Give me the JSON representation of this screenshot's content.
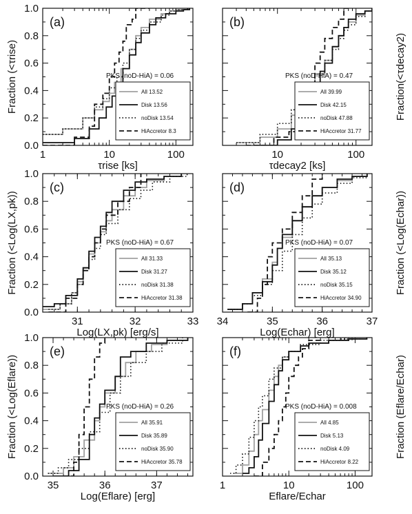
{
  "chart_data": [
    {
      "type": "line",
      "panel": "(a)",
      "xscale": "log",
      "xlim": [
        1,
        180
      ],
      "ylim": [
        0,
        1
      ],
      "xticks": [
        "1",
        "10",
        "100"
      ],
      "xtick_values": [
        1,
        10,
        100
      ],
      "yticks": [
        "0.0",
        "0.2",
        "0.4",
        "0.6",
        "0.8",
        "1.0"
      ],
      "xlabel": "τrise [ks]",
      "ylabel": "Fraction (<τrise)",
      "pks": "PKS (noD-HiA) = 0.06",
      "legend_position": "lower-right",
      "series": [
        {
          "name": "All 13.52",
          "color": "#a0a0a0",
          "dash": "solid",
          "x": [
            1,
            2,
            4,
            6,
            8,
            10,
            12,
            15,
            20,
            25,
            30,
            40,
            60,
            80,
            100,
            150
          ],
          "y": [
            0.08,
            0.12,
            0.2,
            0.26,
            0.32,
            0.38,
            0.46,
            0.56,
            0.7,
            0.8,
            0.86,
            0.92,
            0.96,
            0.98,
            0.99,
            1.0
          ]
        },
        {
          "name": "Disk 13.56",
          "color": "#111111",
          "dash": "solid",
          "x": [
            1,
            3,
            5,
            7,
            9,
            11,
            13,
            16,
            20,
            25,
            30,
            40,
            50,
            70,
            100,
            130,
            160
          ],
          "y": [
            0.02,
            0.05,
            0.12,
            0.2,
            0.28,
            0.36,
            0.45,
            0.56,
            0.66,
            0.75,
            0.82,
            0.88,
            0.93,
            0.96,
            0.98,
            0.99,
            1.0
          ]
        },
        {
          "name": "noDisk 13.54",
          "color": "#111111",
          "dash": "dot",
          "x": [
            1,
            2,
            4,
            6,
            8,
            10,
            13,
            16,
            20,
            25,
            30,
            40,
            60,
            80,
            100,
            150
          ],
          "y": [
            0.08,
            0.12,
            0.2,
            0.28,
            0.34,
            0.42,
            0.5,
            0.6,
            0.7,
            0.78,
            0.84,
            0.9,
            0.95,
            0.98,
            0.99,
            1.0
          ]
        },
        {
          "name": "HiAccretor 8.3",
          "color": "#111111",
          "dash": "dash",
          "x": [
            1,
            3,
            5,
            6,
            8,
            10,
            12,
            14,
            16,
            18,
            22,
            25,
            30,
            40
          ],
          "y": [
            0.0,
            0.06,
            0.14,
            0.3,
            0.38,
            0.5,
            0.6,
            0.68,
            0.76,
            0.88,
            0.92,
            1.0,
            1.0,
            1.0
          ]
        }
      ]
    },
    {
      "type": "line",
      "panel": "(b)",
      "xscale": "log",
      "xlim": [
        2,
        160
      ],
      "ylim": [
        0,
        1
      ],
      "xticks": [
        "10",
        "100"
      ],
      "xtick_values": [
        10,
        100
      ],
      "yticks": [],
      "xlabel": "τdecay2 [ks]",
      "ylabel": "Fraction(<τdecay2)",
      "pks": "PKS (noD-HiA) = 0.47",
      "legend_position": "lower-right",
      "series": [
        {
          "name": "All 39.99",
          "color": "#a0a0a0",
          "dash": "solid",
          "x": [
            3,
            6,
            10,
            15,
            20,
            25,
            30,
            40,
            50,
            60,
            70,
            80,
            100,
            130,
            160
          ],
          "y": [
            0.02,
            0.06,
            0.12,
            0.22,
            0.34,
            0.44,
            0.52,
            0.62,
            0.72,
            0.8,
            0.86,
            0.9,
            0.95,
            0.98,
            1.0
          ]
        },
        {
          "name": "Disk 42.15",
          "color": "#111111",
          "dash": "solid",
          "x": [
            5,
            10,
            15,
            20,
            25,
            30,
            35,
            40,
            50,
            60,
            70,
            80,
            100,
            130,
            160
          ],
          "y": [
            0.0,
            0.04,
            0.12,
            0.26,
            0.36,
            0.44,
            0.54,
            0.6,
            0.72,
            0.8,
            0.86,
            0.92,
            0.96,
            0.98,
            1.0
          ]
        },
        {
          "name": "noDisk 47.88",
          "color": "#111111",
          "dash": "dot",
          "x": [
            3,
            6,
            10,
            15,
            20,
            25,
            30,
            40,
            50,
            60,
            70,
            80,
            100,
            130,
            160
          ],
          "y": [
            0.02,
            0.08,
            0.16,
            0.26,
            0.36,
            0.44,
            0.52,
            0.62,
            0.7,
            0.78,
            0.84,
            0.88,
            0.94,
            0.98,
            1.0
          ]
        },
        {
          "name": "HiAccretor 31.77",
          "color": "#111111",
          "dash": "dash",
          "x": [
            4,
            9,
            14,
            18,
            22,
            26,
            30,
            35,
            40,
            50,
            60,
            70,
            80
          ],
          "y": [
            0.0,
            0.06,
            0.1,
            0.32,
            0.38,
            0.46,
            0.6,
            0.68,
            0.78,
            0.86,
            0.92,
            1.0,
            1.0
          ]
        }
      ]
    },
    {
      "type": "line",
      "panel": "(c)",
      "xscale": "linear",
      "xlim": [
        30.4,
        33
      ],
      "ylim": [
        0,
        1
      ],
      "xticks": [
        "31",
        "32",
        "33"
      ],
      "xtick_values": [
        31,
        32,
        33
      ],
      "yticks": [
        "0.0",
        "0.2",
        "0.4",
        "0.6",
        "0.8",
        "1.0"
      ],
      "xlabel": "Log(LX,pk) [erg/s]",
      "ylabel": "Fraction (<Log(LX,pk))",
      "pks": "PKS (noD-HiA) = 0.67",
      "legend_position": "lower-right",
      "series": [
        {
          "name": "All 31.33",
          "color": "#a0a0a0",
          "dash": "solid",
          "x": [
            30.4,
            30.7,
            30.9,
            31.0,
            31.1,
            31.2,
            31.3,
            31.4,
            31.5,
            31.6,
            31.8,
            32.0,
            32.2,
            32.5,
            32.8
          ],
          "y": [
            0.02,
            0.06,
            0.14,
            0.22,
            0.32,
            0.42,
            0.5,
            0.58,
            0.66,
            0.74,
            0.84,
            0.9,
            0.95,
            0.98,
            1.0
          ]
        },
        {
          "name": "Disk 31.27",
          "color": "#111111",
          "dash": "solid",
          "x": [
            30.4,
            30.6,
            30.8,
            31.0,
            31.1,
            31.2,
            31.3,
            31.4,
            31.5,
            31.6,
            31.8,
            32.0,
            32.2,
            32.5,
            32.8
          ],
          "y": [
            0.04,
            0.06,
            0.12,
            0.24,
            0.32,
            0.44,
            0.54,
            0.62,
            0.72,
            0.8,
            0.88,
            0.94,
            0.96,
            0.98,
            1.0
          ]
        },
        {
          "name": "noDisk 31.38",
          "color": "#111111",
          "dash": "dot",
          "x": [
            30.5,
            30.7,
            30.9,
            31.0,
            31.1,
            31.2,
            31.3,
            31.4,
            31.5,
            31.7,
            31.9,
            32.1,
            32.3,
            32.6,
            32.9
          ],
          "y": [
            0.02,
            0.06,
            0.14,
            0.2,
            0.3,
            0.38,
            0.46,
            0.56,
            0.64,
            0.74,
            0.82,
            0.88,
            0.94,
            0.98,
            1.0
          ]
        },
        {
          "name": "HiAccretor 31.38",
          "color": "#111111",
          "dash": "dash",
          "x": [
            30.5,
            30.8,
            31.0,
            31.1,
            31.2,
            31.3,
            31.4,
            31.5,
            31.7,
            31.9,
            32.1
          ],
          "y": [
            0.0,
            0.1,
            0.2,
            0.3,
            0.4,
            0.5,
            0.6,
            0.7,
            0.8,
            0.9,
            1.0
          ]
        }
      ]
    },
    {
      "type": "line",
      "panel": "(d)",
      "xscale": "linear",
      "xlim": [
        34,
        37
      ],
      "ylim": [
        0,
        1
      ],
      "xticks": [
        "34",
        "35",
        "36",
        "37"
      ],
      "xtick_values": [
        34,
        35,
        36,
        37
      ],
      "yticks": [],
      "xlabel": "Log(Echar) [erg]",
      "ylabel": "Fraction (<Log(Echar))",
      "pks": "PKS (noD-HiA) = 0.07",
      "legend_position": "lower-right",
      "series": [
        {
          "name": "All 35.13",
          "color": "#a0a0a0",
          "dash": "solid",
          "x": [
            34.1,
            34.4,
            34.6,
            34.8,
            35.0,
            35.1,
            35.2,
            35.4,
            35.6,
            35.8,
            36.0,
            36.3,
            36.6,
            36.9
          ],
          "y": [
            0.02,
            0.06,
            0.14,
            0.24,
            0.36,
            0.46,
            0.54,
            0.66,
            0.76,
            0.84,
            0.9,
            0.95,
            0.98,
            1.0
          ]
        },
        {
          "name": "Disk 35.12",
          "color": "#111111",
          "dash": "solid",
          "x": [
            34.1,
            34.4,
            34.6,
            34.8,
            35.0,
            35.1,
            35.2,
            35.4,
            35.6,
            35.8,
            36.0,
            36.3,
            36.6,
            36.9
          ],
          "y": [
            0.02,
            0.06,
            0.14,
            0.22,
            0.34,
            0.46,
            0.56,
            0.66,
            0.76,
            0.84,
            0.9,
            0.96,
            0.98,
            1.0
          ]
        },
        {
          "name": "noDisk 35.15",
          "color": "#111111",
          "dash": "dot",
          "x": [
            34.1,
            34.4,
            34.6,
            34.8,
            35.0,
            35.2,
            35.4,
            35.6,
            35.8,
            36.0,
            36.3,
            36.6,
            36.9
          ],
          "y": [
            0.02,
            0.06,
            0.12,
            0.2,
            0.3,
            0.44,
            0.56,
            0.68,
            0.78,
            0.86,
            0.93,
            0.97,
            1.0
          ]
        },
        {
          "name": "HiAccretor 34.90",
          "color": "#111111",
          "dash": "dash",
          "x": [
            34.5,
            34.7,
            34.8,
            34.9,
            35.0,
            35.2,
            35.4,
            35.6,
            35.8,
            36.0
          ],
          "y": [
            0.0,
            0.1,
            0.2,
            0.4,
            0.5,
            0.6,
            0.72,
            0.84,
            0.96,
            1.0
          ]
        }
      ]
    },
    {
      "type": "line",
      "panel": "(e)",
      "xscale": "linear",
      "xlim": [
        34.8,
        37.7
      ],
      "ylim": [
        0,
        1
      ],
      "xticks": [
        "35",
        "36",
        "37"
      ],
      "xtick_values": [
        35,
        36,
        37
      ],
      "yticks": [
        "0.0",
        "0.2",
        "0.4",
        "0.6",
        "0.8",
        "1.0"
      ],
      "xlabel": "Log(Eflare) [erg]",
      "ylabel": "Fraction (<Log(Eflare))",
      "pks": "PKS (noD-HiA) = 0.26",
      "legend_position": "lower-right",
      "series": [
        {
          "name": "All 35.91",
          "color": "#a0a0a0",
          "dash": "solid",
          "x": [
            34.9,
            35.2,
            35.4,
            35.6,
            35.8,
            35.9,
            36.0,
            36.2,
            36.4,
            36.6,
            36.9,
            37.2,
            37.6
          ],
          "y": [
            0.02,
            0.06,
            0.14,
            0.26,
            0.4,
            0.5,
            0.6,
            0.72,
            0.82,
            0.9,
            0.95,
            0.98,
            1.0
          ]
        },
        {
          "name": "Disk 35.89",
          "color": "#111111",
          "dash": "solid",
          "x": [
            35.0,
            35.3,
            35.5,
            35.7,
            35.8,
            35.9,
            36.0,
            36.2,
            36.3,
            36.5,
            36.8,
            37.2,
            37.6
          ],
          "y": [
            0.0,
            0.04,
            0.12,
            0.3,
            0.42,
            0.52,
            0.62,
            0.72,
            0.86,
            0.9,
            0.96,
            0.98,
            1.0
          ]
        },
        {
          "name": "noDisk 35.90",
          "color": "#111111",
          "dash": "dot",
          "x": [
            34.9,
            35.1,
            35.3,
            35.5,
            35.7,
            35.9,
            36.1,
            36.3,
            36.5,
            36.8,
            37.1,
            37.5
          ],
          "y": [
            0.02,
            0.06,
            0.12,
            0.2,
            0.32,
            0.46,
            0.6,
            0.72,
            0.82,
            0.9,
            0.96,
            1.0
          ]
        },
        {
          "name": "HiAccretor 35.78",
          "color": "#111111",
          "dash": "dash",
          "x": [
            35.2,
            35.4,
            35.5,
            35.6,
            35.7,
            35.8,
            35.9,
            36.0
          ],
          "y": [
            0.0,
            0.1,
            0.3,
            0.5,
            0.7,
            0.86,
            0.96,
            1.0
          ]
        }
      ]
    },
    {
      "type": "line",
      "panel": "(f)",
      "xscale": "log",
      "xlim": [
        1,
        180
      ],
      "ylim": [
        0,
        1
      ],
      "xticks": [
        "1",
        "10",
        "100"
      ],
      "xtick_values": [
        1,
        10,
        100
      ],
      "yticks": [],
      "xlabel": "Eflare/Echar",
      "ylabel": "Fraction (Eflare/Echar)",
      "pks": "PKS (noD-HiA) = 0.008",
      "legend_position": "lower-right",
      "series": [
        {
          "name": "All 4.85",
          "color": "#a0a0a0",
          "dash": "solid",
          "x": [
            1.5,
            2,
            2.5,
            3,
            3.5,
            4,
            5,
            6,
            7,
            8,
            10,
            15,
            20,
            40,
            80,
            150
          ],
          "y": [
            0.02,
            0.08,
            0.18,
            0.3,
            0.4,
            0.48,
            0.62,
            0.72,
            0.8,
            0.86,
            0.9,
            0.94,
            0.96,
            0.98,
            0.99,
            1.0
          ]
        },
        {
          "name": "Disk 5.13",
          "color": "#111111",
          "dash": "solid",
          "x": [
            2,
            2.5,
            3,
            3.5,
            4,
            5,
            6,
            7,
            8,
            10,
            15,
            20,
            40,
            80,
            150
          ],
          "y": [
            0.02,
            0.06,
            0.14,
            0.26,
            0.38,
            0.54,
            0.66,
            0.76,
            0.84,
            0.9,
            0.94,
            0.96,
            0.98,
            0.99,
            1.0
          ]
        },
        {
          "name": "noDisk 4.09",
          "color": "#111111",
          "dash": "dot",
          "x": [
            1.3,
            1.6,
            2,
            2.5,
            3,
            3.5,
            4,
            5,
            6,
            8,
            10,
            15,
            30,
            60,
            120
          ],
          "y": [
            0.02,
            0.08,
            0.16,
            0.28,
            0.4,
            0.5,
            0.58,
            0.7,
            0.78,
            0.86,
            0.9,
            0.95,
            0.98,
            0.99,
            1.0
          ]
        },
        {
          "name": "HiAccretor 8.22",
          "color": "#111111",
          "dash": "dash",
          "x": [
            3,
            4,
            5,
            6,
            7,
            8,
            9,
            10,
            12,
            14,
            16,
            20,
            30
          ],
          "y": [
            0.0,
            0.1,
            0.2,
            0.3,
            0.4,
            0.5,
            0.6,
            0.72,
            0.8,
            0.86,
            0.92,
            0.98,
            1.0
          ]
        }
      ]
    }
  ]
}
